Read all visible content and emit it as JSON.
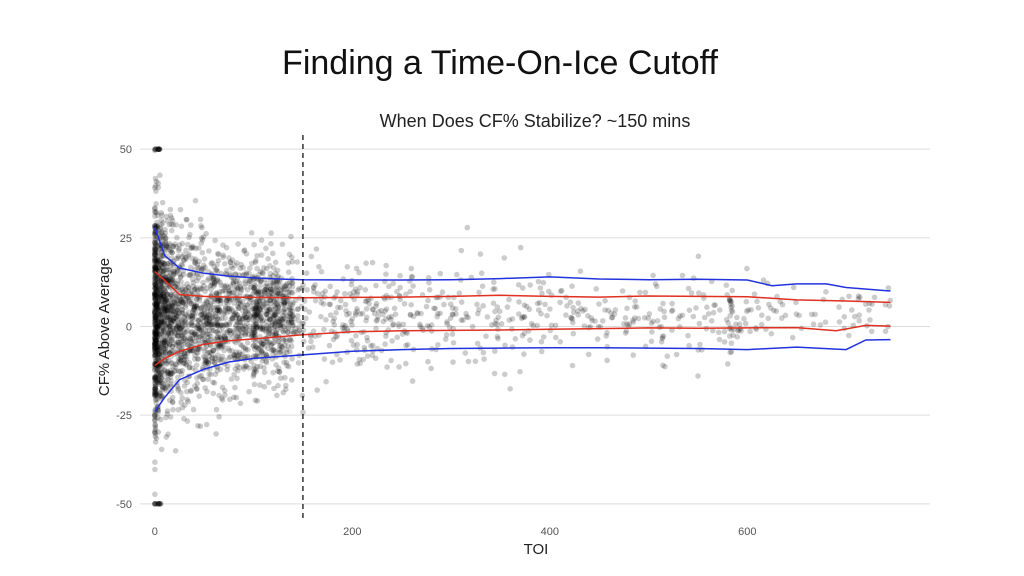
{
  "slide": {
    "title": "Finding a Time-On-Ice Cutoff"
  },
  "colors": {
    "band_outer": "#2233dd",
    "band_inner": "#e03020",
    "points": "#000000",
    "grid": "#dddddd",
    "cutoff_line": "#000000"
  },
  "chart_data": {
    "type": "scatter",
    "title": "When Does CF% Stabilize? ~150 mins",
    "xlabel": "TOI",
    "ylabel": "CF% Above Average",
    "xlim": [
      -15,
      785
    ],
    "ylim": [
      -54,
      54
    ],
    "x_ticks": [
      0,
      200,
      400,
      600
    ],
    "y_ticks": [
      50,
      25,
      0,
      -25,
      -50
    ],
    "x_tick_labels": [
      "0",
      "200",
      "400",
      "600"
    ],
    "y_tick_labels": [
      "50",
      "25",
      "0",
      "-25",
      "-50"
    ],
    "grid": true,
    "cutoff_x": 150,
    "point_alpha": 0.2,
    "series": [
      {
        "role": "outer-upper",
        "color": "#2233dd",
        "x": [
          0,
          10,
          25,
          50,
          75,
          100,
          125,
          150,
          200,
          250,
          300,
          350,
          400,
          450,
          500,
          550,
          600,
          625,
          650,
          680,
          700,
          745
        ],
        "values": [
          28,
          20,
          16.5,
          15,
          14.2,
          13.7,
          13.4,
          13.2,
          13.1,
          13.1,
          13.2,
          13.5,
          14,
          13.4,
          13.2,
          13.3,
          13.1,
          11.5,
          12,
          12,
          11,
          10
        ]
      },
      {
        "role": "inner-upper",
        "color": "#e03020",
        "x": [
          0,
          10,
          25,
          50,
          75,
          100,
          150,
          200,
          250,
          300,
          350,
          400,
          450,
          500,
          550,
          600,
          650,
          700,
          745
        ],
        "values": [
          15.5,
          13,
          9,
          8.5,
          8.3,
          8.2,
          8.1,
          8.2,
          8.3,
          8.5,
          8.8,
          8.5,
          8.3,
          8.6,
          8.5,
          8.4,
          7.5,
          7.2,
          6.8
        ]
      },
      {
        "role": "inner-lower",
        "color": "#e03020",
        "x": [
          0,
          10,
          25,
          50,
          75,
          100,
          150,
          200,
          250,
          300,
          350,
          400,
          450,
          500,
          550,
          600,
          650,
          690,
          720,
          745
        ],
        "values": [
          -11,
          -9,
          -7,
          -5,
          -4,
          -3.5,
          -2.3,
          -1.5,
          -1.2,
          -1.1,
          -1,
          -0.8,
          -0.6,
          -0.4,
          -0.5,
          -0.4,
          -0.3,
          -1.2,
          0.3,
          0.1
        ]
      },
      {
        "role": "outer-lower",
        "color": "#2233dd",
        "x": [
          0,
          10,
          25,
          50,
          75,
          100,
          150,
          200,
          250,
          300,
          350,
          400,
          450,
          500,
          550,
          600,
          650,
          700,
          720,
          745
        ],
        "values": [
          -24,
          -20,
          -15,
          -12,
          -10,
          -9,
          -8,
          -7,
          -6.5,
          -6.2,
          -6.1,
          -6,
          -6,
          -6.1,
          -6.2,
          -6.5,
          -5.8,
          -6.5,
          -3.8,
          -3.7
        ]
      }
    ]
  }
}
